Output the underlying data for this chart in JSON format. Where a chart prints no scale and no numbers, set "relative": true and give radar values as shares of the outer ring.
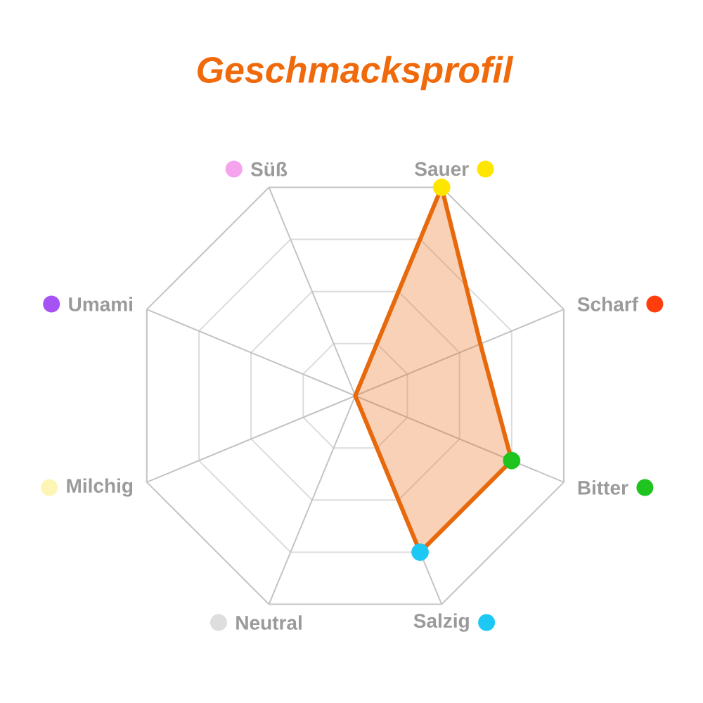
{
  "chart_data": {
    "type": "radar",
    "title": "Geschmacksprofil",
    "categories": [
      "Sauer",
      "Scharf",
      "Bitter",
      "Salzig",
      "Neutral",
      "Milchig",
      "Umami",
      "Süß"
    ],
    "colors": [
      "#ffe600",
      "#ff3d0d",
      "#1fc41f",
      "#1ec8f5",
      "#dedede",
      "#fdf5b3",
      "#a752f5",
      "#f5a3ec"
    ],
    "relative": true,
    "grid": true,
    "marker": "circle",
    "series": [
      {
        "color": "#e8680c",
        "values": [
          1,
          0.6,
          0.75,
          0.75,
          0,
          0,
          0,
          0
        ],
        "colors": [
          "#ffe600",
          null,
          "#1fc41f",
          "#1ec8f5",
          null,
          null,
          null,
          null
        ]
      }
    ]
  }
}
